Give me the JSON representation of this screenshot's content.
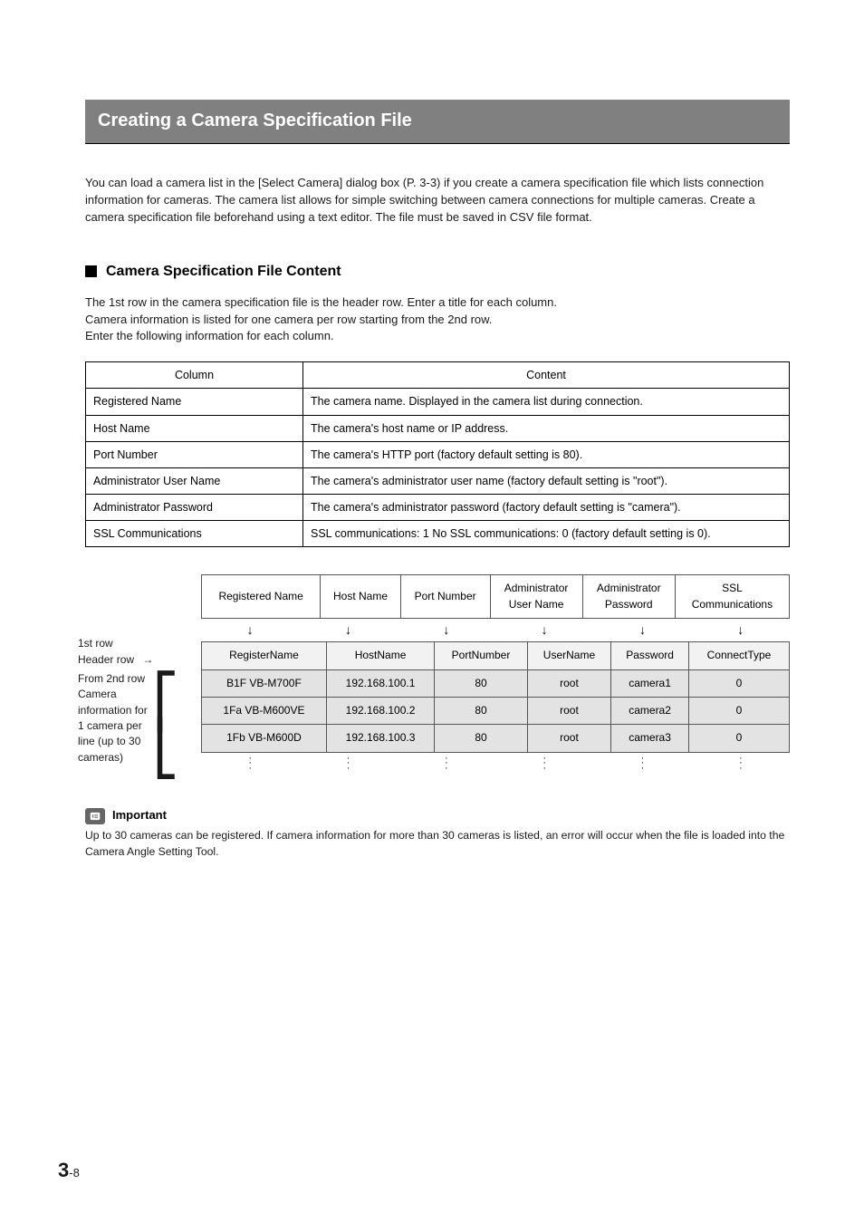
{
  "title": "Creating a Camera Specification File",
  "intro": "You can load a camera list in the [Select Camera] dialog box (P. 3-3) if you create a camera specification file which lists connection information for cameras. The camera list allows for simple switching between camera connections for multiple cameras. Create a camera specification file beforehand using a text editor. The file must be saved in CSV file format.",
  "section_heading": "Camera Specification File Content",
  "section_body_1": "The 1st row in the camera specification file is the header row. Enter a title for each column.",
  "section_body_2": "Camera information is listed for one camera per row starting from the 2nd row.",
  "section_body_3": "Enter the following information for each column.",
  "spec_table": {
    "th_column": "Column",
    "th_content": "Content",
    "rows": [
      {
        "c": "Registered Name",
        "d": "The camera name. Displayed in the camera list during connection."
      },
      {
        "c": "Host Name",
        "d": "The camera's host name or IP address."
      },
      {
        "c": "Port Number",
        "d": "The camera's HTTP port (factory default setting is 80)."
      },
      {
        "c": "Administrator User Name",
        "d": "The camera's administrator user name (factory default setting is \"root\")."
      },
      {
        "c": "Administrator Password",
        "d": "The camera's administrator password (factory default setting is \"camera\")."
      },
      {
        "c": "SSL Communications",
        "d": "SSL communications: 1   No SSL communications: 0 (factory default setting is 0)."
      }
    ]
  },
  "diagram": {
    "top_headers": [
      "Registered Name",
      "Host Name",
      "Port Number",
      "Administrator\nUser Name",
      "Administrator\nPassword",
      "SSL\nCommunications"
    ],
    "body_header": [
      "RegisterName",
      "HostName",
      "PortNumber",
      "UserName",
      "Password",
      "ConnectType"
    ],
    "rows": [
      [
        "B1F VB-M700F",
        "192.168.100.1",
        "80",
        "root",
        "camera1",
        "0"
      ],
      [
        "1Fa VB-M600VE",
        "192.168.100.2",
        "80",
        "root",
        "camera2",
        "0"
      ],
      [
        "1Fb VB-M600D",
        "192.168.100.3",
        "80",
        "root",
        "camera3",
        "0"
      ]
    ],
    "label_first_a": "1st row",
    "label_first_b": "Header row",
    "label_second": "From 2nd row\nCamera\ninformation for\n1 camera per\nline (up to 30\ncameras)",
    "header_bg": "#f2f2f2",
    "data_bg": "#e3e3e3",
    "border_color": "#555555"
  },
  "important": {
    "label": "Important",
    "text": "Up to 30 cameras can be registered. If camera information for more than 30 cameras is listed, an error will occur when the file is loaded into the Camera Angle Setting Tool."
  },
  "page": {
    "chapter": "3",
    "sep": "-",
    "num": "8"
  },
  "colors": {
    "title_bg": "#808080",
    "title_fg": "#ffffff",
    "page_bg": "#ffffff",
    "text": "#000000"
  }
}
